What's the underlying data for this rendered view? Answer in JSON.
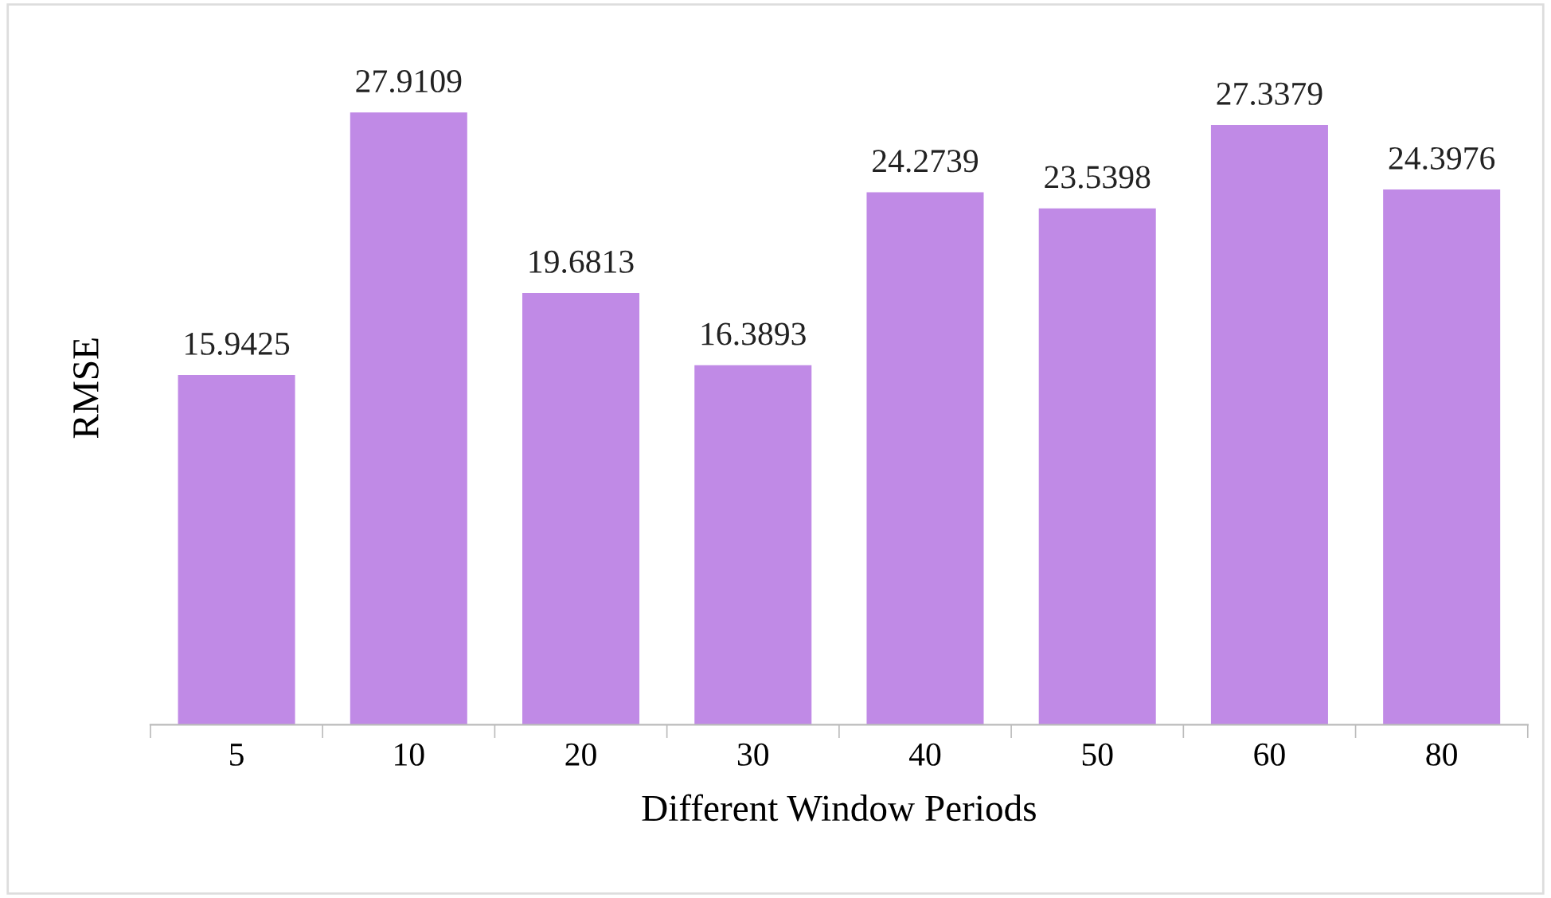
{
  "chart_data": {
    "type": "bar",
    "xlabel": "Different Window Periods",
    "ylabel": "RMSE",
    "categories": [
      "5",
      "10",
      "20",
      "30",
      "40",
      "50",
      "60",
      "80"
    ],
    "values": [
      15.9425,
      27.9109,
      19.6813,
      16.3893,
      24.2739,
      23.5398,
      27.3379,
      24.3976
    ],
    "color": "#c08ae6",
    "data_labels": true
  }
}
